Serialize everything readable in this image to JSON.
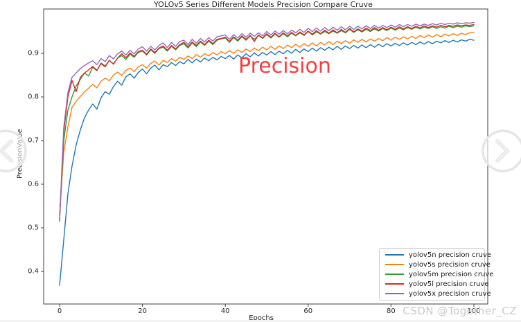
{
  "page": {
    "watermark": "CSDN @Together_CZ"
  },
  "nav": {
    "left_icon": "chevron-left-icon",
    "right_icon": "chevron-right-icon"
  },
  "chart_data": {
    "type": "line",
    "title": "YOLOv5 Series Different Models Precision Compare Cruve",
    "xlabel": "Epochs",
    "ylabel": "PrecisionValue",
    "xticks": [
      0,
      20,
      40,
      60,
      80,
      100
    ],
    "yticks": [
      0.4,
      0.5,
      0.6,
      0.7,
      0.8,
      0.9
    ],
    "xlim": [
      -4,
      103
    ],
    "ylim": [
      0.325,
      1.0
    ],
    "grid": false,
    "legend_position": "lower right",
    "x_start": 0,
    "x_step": 1,
    "annotation": {
      "text": "Precision",
      "color": "#f24040"
    },
    "series": [
      {
        "name": "yolov5n precision cruve",
        "color": "#1f77b4",
        "values": [
          0.368,
          0.472,
          0.578,
          0.641,
          0.69,
          0.724,
          0.752,
          0.77,
          0.784,
          0.772,
          0.798,
          0.812,
          0.806,
          0.824,
          0.836,
          0.827,
          0.846,
          0.853,
          0.843,
          0.856,
          0.864,
          0.853,
          0.866,
          0.873,
          0.862,
          0.874,
          0.869,
          0.879,
          0.872,
          0.881,
          0.876,
          0.886,
          0.878,
          0.887,
          0.88,
          0.889,
          0.883,
          0.891,
          0.885,
          0.893,
          0.888,
          0.895,
          0.887,
          0.896,
          0.89,
          0.899,
          0.892,
          0.901,
          0.894,
          0.902,
          0.896,
          0.904,
          0.897,
          0.905,
          0.899,
          0.907,
          0.9,
          0.909,
          0.902,
          0.91,
          0.904,
          0.912,
          0.905,
          0.913,
          0.907,
          0.914,
          0.908,
          0.916,
          0.909,
          0.917,
          0.911,
          0.918,
          0.912,
          0.919,
          0.913,
          0.92,
          0.914,
          0.921,
          0.915,
          0.922,
          0.917,
          0.923,
          0.918,
          0.924,
          0.919,
          0.925,
          0.92,
          0.926,
          0.921,
          0.927,
          0.922,
          0.928,
          0.924,
          0.929,
          0.925,
          0.93,
          0.926,
          0.931,
          0.928,
          0.932,
          0.93
        ]
      },
      {
        "name": "yolov5s precision cruve",
        "color": "#ff7f0e",
        "values": [
          0.53,
          0.672,
          0.731,
          0.776,
          0.79,
          0.801,
          0.812,
          0.82,
          0.829,
          0.821,
          0.836,
          0.843,
          0.837,
          0.85,
          0.857,
          0.849,
          0.861,
          0.866,
          0.858,
          0.869,
          0.874,
          0.866,
          0.877,
          0.882,
          0.873,
          0.884,
          0.879,
          0.888,
          0.882,
          0.891,
          0.886,
          0.894,
          0.888,
          0.897,
          0.891,
          0.899,
          0.894,
          0.902,
          0.896,
          0.904,
          0.899,
          0.906,
          0.9,
          0.908,
          0.902,
          0.91,
          0.904,
          0.912,
          0.906,
          0.914,
          0.908,
          0.916,
          0.909,
          0.917,
          0.911,
          0.919,
          0.913,
          0.921,
          0.914,
          0.922,
          0.916,
          0.924,
          0.917,
          0.925,
          0.919,
          0.927,
          0.92,
          0.928,
          0.922,
          0.929,
          0.923,
          0.931,
          0.925,
          0.932,
          0.926,
          0.933,
          0.928,
          0.934,
          0.929,
          0.936,
          0.93,
          0.937,
          0.932,
          0.938,
          0.933,
          0.939,
          0.934,
          0.941,
          0.936,
          0.942,
          0.937,
          0.943,
          0.938,
          0.944,
          0.94,
          0.945,
          0.941,
          0.946,
          0.943,
          0.947,
          0.948
        ]
      },
      {
        "name": "yolov5m precision cruve",
        "color": "#2ca02c",
        "values": [
          0.52,
          0.7,
          0.77,
          0.8,
          0.825,
          0.84,
          0.855,
          0.848,
          0.868,
          0.86,
          0.878,
          0.871,
          0.884,
          0.876,
          0.889,
          0.895,
          0.886,
          0.898,
          0.891,
          0.902,
          0.905,
          0.896,
          0.908,
          0.9,
          0.911,
          0.914,
          0.905,
          0.916,
          0.908,
          0.918,
          0.922,
          0.912,
          0.924,
          0.915,
          0.926,
          0.918,
          0.928,
          0.92,
          0.93,
          0.933,
          0.935,
          0.925,
          0.936,
          0.928,
          0.938,
          0.93,
          0.94,
          0.932,
          0.941,
          0.934,
          0.943,
          0.935,
          0.944,
          0.937,
          0.945,
          0.938,
          0.946,
          0.94,
          0.947,
          0.941,
          0.95,
          0.942,
          0.949,
          0.944,
          0.95,
          0.945,
          0.951,
          0.946,
          0.952,
          0.947,
          0.955,
          0.948,
          0.954,
          0.949,
          0.955,
          0.95,
          0.956,
          0.951,
          0.957,
          0.952,
          0.958,
          0.953,
          0.958,
          0.954,
          0.959,
          0.955,
          0.96,
          0.956,
          0.96,
          0.957,
          0.961,
          0.957,
          0.961,
          0.958,
          0.962,
          0.959,
          0.962,
          0.96,
          0.963,
          0.961,
          0.963
        ]
      },
      {
        "name": "yolov5l precision cruve",
        "color": "#d62728",
        "values": [
          0.515,
          0.72,
          0.8,
          0.838,
          0.812,
          0.845,
          0.855,
          0.862,
          0.87,
          0.861,
          0.876,
          0.869,
          0.884,
          0.875,
          0.889,
          0.899,
          0.89,
          0.901,
          0.893,
          0.904,
          0.907,
          0.898,
          0.91,
          0.902,
          0.912,
          0.917,
          0.907,
          0.918,
          0.91,
          0.92,
          0.925,
          0.915,
          0.926,
          0.918,
          0.928,
          0.92,
          0.93,
          0.922,
          0.932,
          0.934,
          0.937,
          0.927,
          0.938,
          0.93,
          0.94,
          0.932,
          0.941,
          0.927,
          0.942,
          0.935,
          0.945,
          0.937,
          0.946,
          0.938,
          0.947,
          0.94,
          0.948,
          0.941,
          0.949,
          0.942,
          0.951,
          0.944,
          0.952,
          0.945,
          0.953,
          0.946,
          0.954,
          0.947,
          0.955,
          0.948,
          0.957,
          0.949,
          0.956,
          0.951,
          0.958,
          0.952,
          0.959,
          0.953,
          0.959,
          0.954,
          0.96,
          0.955,
          0.961,
          0.956,
          0.961,
          0.957,
          0.962,
          0.958,
          0.963,
          0.959,
          0.963,
          0.96,
          0.964,
          0.961,
          0.964,
          0.962,
          0.965,
          0.963,
          0.965,
          0.964,
          0.966
        ]
      },
      {
        "name": "yolov5x precision cruve",
        "color": "#9467bd",
        "values": [
          0.52,
          0.73,
          0.81,
          0.845,
          0.855,
          0.865,
          0.872,
          0.878,
          0.883,
          0.874,
          0.888,
          0.881,
          0.895,
          0.887,
          0.899,
          0.905,
          0.896,
          0.907,
          0.899,
          0.91,
          0.915,
          0.905,
          0.916,
          0.908,
          0.918,
          0.924,
          0.913,
          0.925,
          0.916,
          0.927,
          0.93,
          0.92,
          0.932,
          0.923,
          0.934,
          0.926,
          0.936,
          0.928,
          0.938,
          0.94,
          0.942,
          0.932,
          0.943,
          0.935,
          0.945,
          0.937,
          0.946,
          0.939,
          0.947,
          0.94,
          0.95,
          0.942,
          0.951,
          0.944,
          0.952,
          0.945,
          0.953,
          0.947,
          0.955,
          0.948,
          0.957,
          0.95,
          0.958,
          0.951,
          0.959,
          0.952,
          0.96,
          0.953,
          0.961,
          0.954,
          0.962,
          0.955,
          0.962,
          0.956,
          0.963,
          0.957,
          0.964,
          0.958,
          0.964,
          0.959,
          0.965,
          0.96,
          0.966,
          0.961,
          0.966,
          0.962,
          0.967,
          0.963,
          0.967,
          0.964,
          0.968,
          0.965,
          0.969,
          0.966,
          0.969,
          0.967,
          0.97,
          0.968,
          0.97,
          0.969,
          0.971
        ]
      }
    ]
  }
}
